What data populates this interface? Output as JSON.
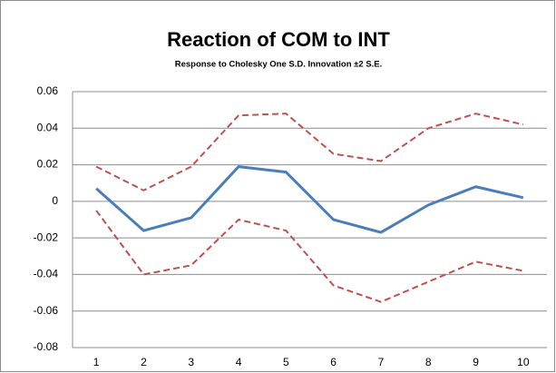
{
  "chart_data": {
    "type": "line",
    "title": "Reaction of COM to INT",
    "subtitle": "Response to Cholesky One S.D. Innovation ±2 S.E.",
    "categories": [
      "1",
      "2",
      "3",
      "4",
      "5",
      "6",
      "7",
      "8",
      "9",
      "10"
    ],
    "series": [
      {
        "color": "#4a7ebb",
        "dashed": false,
        "values": [
          0.007,
          -0.016,
          -0.009,
          0.019,
          0.016,
          -0.01,
          -0.017,
          -0.002,
          0.008,
          0.002
        ]
      },
      {
        "color": "#c0504d",
        "dashed": true,
        "values": [
          0.019,
          0.006,
          0.019,
          0.047,
          0.048,
          0.026,
          0.022,
          0.04,
          0.048,
          0.042
        ]
      },
      {
        "color": "#c0504d",
        "dashed": true,
        "values": [
          -0.005,
          -0.04,
          -0.035,
          -0.01,
          -0.016,
          -0.046,
          -0.055,
          -0.044,
          -0.033,
          -0.038
        ]
      }
    ],
    "ylim": [
      -0.08,
      0.06
    ],
    "yticks": [
      -0.08,
      -0.06,
      -0.04,
      -0.02,
      0,
      0.02,
      0.04,
      0.06
    ],
    "grid": true
  }
}
